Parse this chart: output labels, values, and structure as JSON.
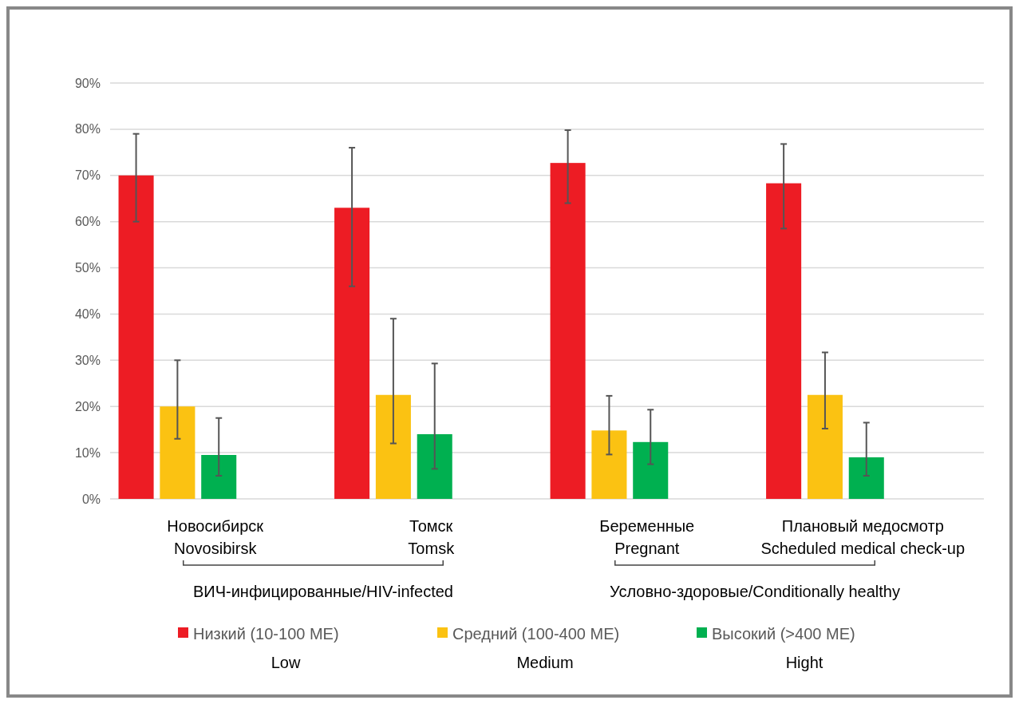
{
  "chart_data": {
    "type": "bar",
    "categories": [
      "Новосибирск\nNovosibirsk",
      "Томск\nTomsk",
      "Беременные\nPregnant",
      "Плановый медосмотр\nScheduled medical check-up"
    ],
    "series": [
      {
        "name": "Низкий (10-100 МЕ)\nLow",
        "color": "#ed1c24",
        "values": [
          70,
          63,
          72.7,
          68.3
        ],
        "errors": [
          [
            60,
            79
          ],
          [
            46,
            76
          ],
          [
            64,
            79.8
          ],
          [
            58.5,
            76.8
          ]
        ]
      },
      {
        "name": "Средний (100-400 МЕ)\nMedium",
        "color": "#fbc212",
        "values": [
          20,
          22.5,
          14.8,
          22.5
        ],
        "errors": [
          [
            13,
            30
          ],
          [
            12,
            39
          ],
          [
            9.6,
            22.3
          ],
          [
            15.2,
            31.7
          ]
        ]
      },
      {
        "name": "Высокий (>400 МЕ)\nHight",
        "color": "#00b050",
        "values": [
          9.5,
          14,
          12.3,
          9
        ],
        "errors": [
          [
            5,
            17.5
          ],
          [
            6.5,
            29.3
          ],
          [
            7.5,
            19.3
          ],
          [
            5,
            16.5
          ]
        ]
      }
    ],
    "annotations": [
      "ВИЧ-инфицированные/HIV-infected",
      "Условно-здоровые/Conditionally healthy"
    ],
    "ylim": [
      0,
      90
    ],
    "yticks": [
      {
        "value": 0,
        "label": "0%"
      },
      {
        "value": 10,
        "label": "10%"
      },
      {
        "value": 20,
        "label": "20%"
      },
      {
        "value": 30,
        "label": "30%"
      },
      {
        "value": 40,
        "label": "40%"
      },
      {
        "value": 50,
        "label": "50%"
      },
      {
        "value": 60,
        "label": "60%"
      },
      {
        "value": 70,
        "label": "70%"
      },
      {
        "value": 80,
        "label": "80%"
      },
      {
        "value": 90,
        "label": "90%"
      }
    ],
    "grid": "y",
    "legend": "bottom"
  }
}
